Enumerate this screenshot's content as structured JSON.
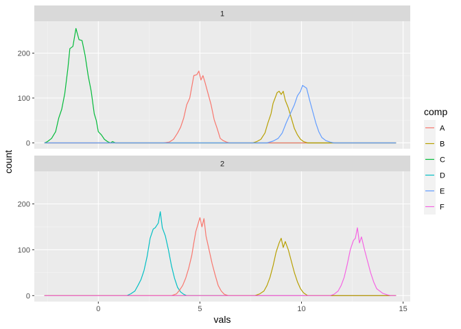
{
  "chart_data": {
    "type": "line",
    "xlabel": "vals",
    "ylabel": "count",
    "xlim": [
      -3.15,
      15.35
    ],
    "ylim": [
      -13,
      271
    ],
    "x_ticks": [
      0,
      5,
      10,
      15
    ],
    "y_ticks": [
      0,
      100,
      200
    ],
    "x_tick_labels": [
      "0",
      "5",
      "10",
      "15"
    ],
    "y_tick_labels": [
      "0",
      "100",
      "200"
    ],
    "legend": {
      "title": "comp",
      "position": "right",
      "entries": [
        {
          "label": "A",
          "color": "#F8766D"
        },
        {
          "label": "B",
          "color": "#B79F00"
        },
        {
          "label": "C",
          "color": "#00BA38"
        },
        {
          "label": "D",
          "color": "#00BFC4"
        },
        {
          "label": "E",
          "color": "#619CFF"
        },
        {
          "label": "F",
          "color": "#F564E3"
        }
      ]
    },
    "facets": [
      {
        "label": "1",
        "series": [
          {
            "name": "C",
            "color": "#00BA38",
            "x_range": [
              -2.65,
              14.65
            ],
            "points": [
              [
                -2.65,
                0
              ],
              [
                -2.5,
                3
              ],
              [
                -2.3,
                10
              ],
              [
                -2.1,
                25
              ],
              [
                -1.95,
                55
              ],
              [
                -1.8,
                75
              ],
              [
                -1.65,
                110
              ],
              [
                -1.5,
                165
              ],
              [
                -1.4,
                210
              ],
              [
                -1.25,
                215
              ],
              [
                -1.1,
                255
              ],
              [
                -0.95,
                230
              ],
              [
                -0.8,
                228
              ],
              [
                -0.65,
                195
              ],
              [
                -0.5,
                150
              ],
              [
                -0.35,
                115
              ],
              [
                -0.2,
                65
              ],
              [
                -0.1,
                50
              ],
              [
                0,
                25
              ],
              [
                0.15,
                18
              ],
              [
                0.3,
                8
              ],
              [
                0.45,
                3
              ],
              [
                0.6,
                0
              ],
              [
                0.7,
                3
              ],
              [
                0.85,
                0
              ],
              [
                14.65,
                0
              ]
            ]
          },
          {
            "name": "A",
            "color": "#F8766D",
            "x_range": [
              -2.65,
              14.65
            ],
            "points": [
              [
                -2.65,
                0
              ],
              [
                3.2,
                0
              ],
              [
                3.5,
                2
              ],
              [
                3.7,
                8
              ],
              [
                3.9,
                22
              ],
              [
                4.05,
                35
              ],
              [
                4.2,
                55
              ],
              [
                4.35,
                85
              ],
              [
                4.5,
                100
              ],
              [
                4.6,
                125
              ],
              [
                4.7,
                150
              ],
              [
                4.85,
                152
              ],
              [
                4.95,
                160
              ],
              [
                5.05,
                140
              ],
              [
                5.15,
                150
              ],
              [
                5.25,
                135
              ],
              [
                5.4,
                110
              ],
              [
                5.55,
                85
              ],
              [
                5.7,
                52
              ],
              [
                5.85,
                32
              ],
              [
                6.0,
                10
              ],
              [
                6.15,
                5
              ],
              [
                6.3,
                2
              ],
              [
                6.45,
                0
              ],
              [
                14.65,
                0
              ]
            ]
          },
          {
            "name": "B",
            "color": "#B79F00",
            "x_range": [
              -2.65,
              14.65
            ],
            "points": [
              [
                -2.65,
                0
              ],
              [
                7.6,
                0
              ],
              [
                7.8,
                3
              ],
              [
                8.0,
                8
              ],
              [
                8.2,
                22
              ],
              [
                8.35,
                45
              ],
              [
                8.5,
                65
              ],
              [
                8.6,
                88
              ],
              [
                8.7,
                100
              ],
              [
                8.8,
                112
              ],
              [
                8.9,
                115
              ],
              [
                9.0,
                108
              ],
              [
                9.1,
                115
              ],
              [
                9.2,
                95
              ],
              [
                9.35,
                78
              ],
              [
                9.5,
                55
              ],
              [
                9.65,
                32
              ],
              [
                9.8,
                18
              ],
              [
                9.95,
                8
              ],
              [
                10.1,
                3
              ],
              [
                10.3,
                0
              ],
              [
                14.65,
                0
              ]
            ]
          },
          {
            "name": "E",
            "color": "#619CFF",
            "x_range": [
              -2.65,
              14.65
            ],
            "points": [
              [
                -2.65,
                0
              ],
              [
                8.3,
                0
              ],
              [
                8.6,
                4
              ],
              [
                8.85,
                10
              ],
              [
                9.05,
                22
              ],
              [
                9.25,
                45
              ],
              [
                9.45,
                65
              ],
              [
                9.65,
                85
              ],
              [
                9.8,
                105
              ],
              [
                9.95,
                115
              ],
              [
                10.05,
                128
              ],
              [
                10.15,
                125
              ],
              [
                10.25,
                122
              ],
              [
                10.4,
                95
              ],
              [
                10.55,
                70
              ],
              [
                10.7,
                45
              ],
              [
                10.85,
                25
              ],
              [
                11.0,
                12
              ],
              [
                11.2,
                5
              ],
              [
                11.4,
                2
              ],
              [
                11.6,
                0
              ],
              [
                14.65,
                0
              ]
            ]
          }
        ]
      },
      {
        "label": "2",
        "series": [
          {
            "name": "D",
            "color": "#00BFC4",
            "x_range": [
              -2.65,
              14.65
            ],
            "points": [
              [
                -2.65,
                0
              ],
              [
                1.4,
                0
              ],
              [
                1.6,
                4
              ],
              [
                1.8,
                10
              ],
              [
                1.95,
                22
              ],
              [
                2.1,
                35
              ],
              [
                2.25,
                55
              ],
              [
                2.4,
                85
              ],
              [
                2.55,
                125
              ],
              [
                2.7,
                145
              ],
              [
                2.8,
                148
              ],
              [
                2.95,
                158
              ],
              [
                3.05,
                183
              ],
              [
                3.15,
                148
              ],
              [
                3.3,
                130
              ],
              [
                3.45,
                100
              ],
              [
                3.6,
                65
              ],
              [
                3.75,
                38
              ],
              [
                3.9,
                18
              ],
              [
                4.05,
                8
              ],
              [
                4.2,
                3
              ],
              [
                4.35,
                0
              ],
              [
                14.65,
                0
              ]
            ]
          },
          {
            "name": "A",
            "color": "#F8766D",
            "x_range": [
              -2.65,
              14.65
            ],
            "points": [
              [
                -2.65,
                0
              ],
              [
                3.6,
                0
              ],
              [
                3.85,
                4
              ],
              [
                4.0,
                12
              ],
              [
                4.15,
                22
              ],
              [
                4.3,
                38
              ],
              [
                4.45,
                60
              ],
              [
                4.6,
                88
              ],
              [
                4.7,
                115
              ],
              [
                4.8,
                140
              ],
              [
                4.9,
                155
              ],
              [
                5.0,
                170
              ],
              [
                5.1,
                150
              ],
              [
                5.2,
                168
              ],
              [
                5.3,
                130
              ],
              [
                5.45,
                100
              ],
              [
                5.6,
                70
              ],
              [
                5.75,
                45
              ],
              [
                5.9,
                22
              ],
              [
                6.05,
                10
              ],
              [
                6.2,
                3
              ],
              [
                6.4,
                0
              ],
              [
                14.65,
                0
              ]
            ]
          },
          {
            "name": "B",
            "color": "#B79F00",
            "x_range": [
              -2.65,
              14.65
            ],
            "points": [
              [
                -2.65,
                0
              ],
              [
                7.7,
                0
              ],
              [
                7.95,
                4
              ],
              [
                8.15,
                10
              ],
              [
                8.3,
                22
              ],
              [
                8.45,
                40
              ],
              [
                8.6,
                65
              ],
              [
                8.75,
                95
              ],
              [
                8.9,
                115
              ],
              [
                9.0,
                125
              ],
              [
                9.1,
                105
              ],
              [
                9.2,
                118
              ],
              [
                9.35,
                100
              ],
              [
                9.5,
                75
              ],
              [
                9.65,
                50
              ],
              [
                9.8,
                30
              ],
              [
                9.95,
                15
              ],
              [
                10.1,
                6
              ],
              [
                10.3,
                0
              ],
              [
                14.65,
                0
              ]
            ]
          },
          {
            "name": "F",
            "color": "#F564E3",
            "x_range": [
              -2.65,
              14.65
            ],
            "points": [
              [
                -2.65,
                0
              ],
              [
                11.4,
                0
              ],
              [
                11.6,
                3
              ],
              [
                11.8,
                10
              ],
              [
                11.95,
                22
              ],
              [
                12.1,
                40
              ],
              [
                12.25,
                68
              ],
              [
                12.4,
                100
              ],
              [
                12.55,
                120
              ],
              [
                12.65,
                125
              ],
              [
                12.75,
                148
              ],
              [
                12.85,
                115
              ],
              [
                12.95,
                128
              ],
              [
                13.1,
                100
              ],
              [
                13.25,
                75
              ],
              [
                13.4,
                50
              ],
              [
                13.55,
                30
              ],
              [
                13.7,
                15
              ],
              [
                13.85,
                10
              ],
              [
                14.0,
                5
              ],
              [
                14.2,
                2
              ],
              [
                14.4,
                0
              ],
              [
                14.65,
                0
              ]
            ]
          }
        ]
      }
    ]
  }
}
